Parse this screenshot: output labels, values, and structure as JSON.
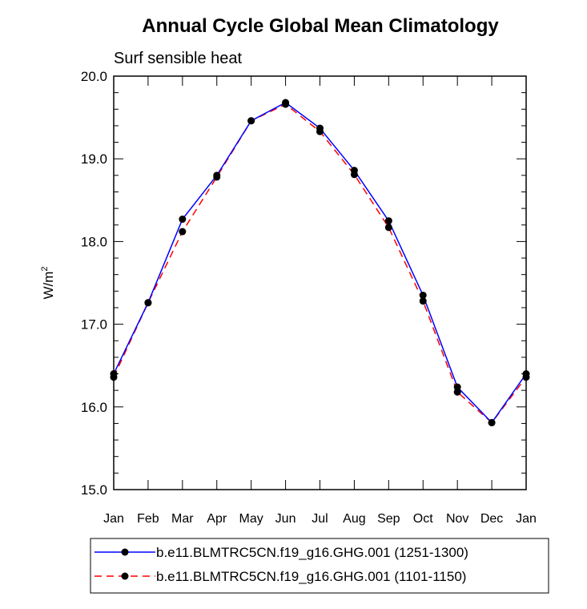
{
  "chart_data": {
    "type": "line",
    "title": "Annual Cycle Global Mean Climatology",
    "subtitle": "Surf sensible heat",
    "xlabel": "",
    "ylabel_base": "W/m",
    "ylabel_sup": "2",
    "categories": [
      "Jan",
      "Feb",
      "Mar",
      "Apr",
      "May",
      "Jun",
      "Jul",
      "Aug",
      "Sep",
      "Oct",
      "Nov",
      "Dec",
      "Jan"
    ],
    "ylim": [
      15.0,
      20.0
    ],
    "yticks": [
      "15.0",
      "16.0",
      "17.0",
      "18.0",
      "19.0",
      "20.0"
    ],
    "grid": false,
    "legend_position": "bottom",
    "series": [
      {
        "name": "b.e11.BLMTRC5CN.f19_g16.GHG.001 (1251-1300)",
        "color": "#0000ff",
        "dash": "solid",
        "values": [
          16.4,
          17.26,
          18.27,
          18.8,
          19.46,
          19.68,
          19.37,
          18.86,
          18.25,
          17.35,
          16.24,
          15.81,
          16.4
        ]
      },
      {
        "name": "b.e11.BLMTRC5CN.f19_g16.GHG.001 (1101-1150)",
        "color": "#ff0000",
        "dash": "dashed",
        "values": [
          16.36,
          17.26,
          18.12,
          18.78,
          19.46,
          19.66,
          19.33,
          18.81,
          18.17,
          17.28,
          16.18,
          15.81,
          16.36
        ]
      }
    ]
  }
}
